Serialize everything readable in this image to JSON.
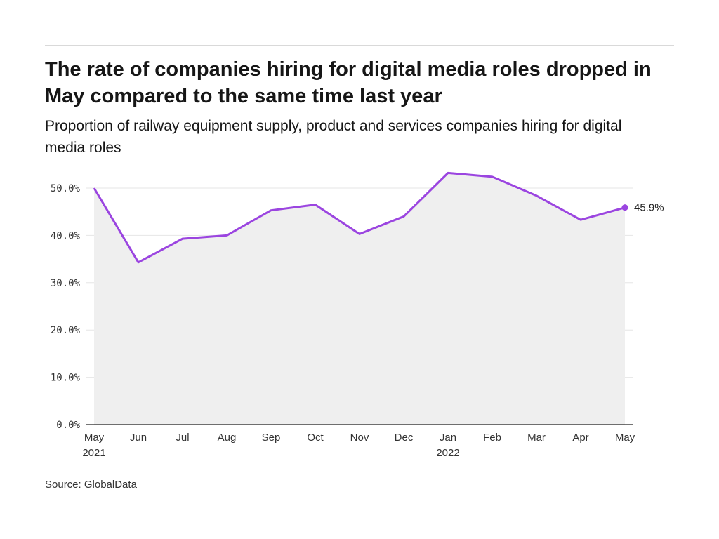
{
  "header": {
    "title": "The rate of companies hiring for digital media roles dropped in May compared to the same time last year",
    "subtitle": "Proportion of railway equipment supply, product and services companies hiring for digital media roles"
  },
  "footer": {
    "source": "Source: GlobalData"
  },
  "colors": {
    "line": "#9b45e0",
    "area": "#efefef",
    "grid": "#e6e6e6",
    "axis": "#222222"
  },
  "chart_data": {
    "type": "area",
    "categories": [
      [
        "May",
        "2021"
      ],
      [
        "Jun",
        ""
      ],
      [
        "Jul",
        ""
      ],
      [
        "Aug",
        ""
      ],
      [
        "Sep",
        ""
      ],
      [
        "Oct",
        ""
      ],
      [
        "Nov",
        ""
      ],
      [
        "Dec",
        ""
      ],
      [
        "Jan",
        "2022"
      ],
      [
        "Feb",
        ""
      ],
      [
        "Mar",
        ""
      ],
      [
        "Apr",
        ""
      ],
      [
        "May",
        ""
      ]
    ],
    "values": [
      50.0,
      34.3,
      39.3,
      40.0,
      45.3,
      46.5,
      40.3,
      44.0,
      53.2,
      52.4,
      48.4,
      43.3,
      45.9
    ],
    "ylim": [
      0,
      50
    ],
    "yticks": [
      0,
      10,
      20,
      30,
      40,
      50
    ],
    "ytick_labels": [
      "0.0%",
      "10.0%",
      "20.0%",
      "30.0%",
      "40.0%",
      "50.0%"
    ],
    "end_label": "45.9%",
    "grid": "horizontal",
    "legend": "none"
  }
}
